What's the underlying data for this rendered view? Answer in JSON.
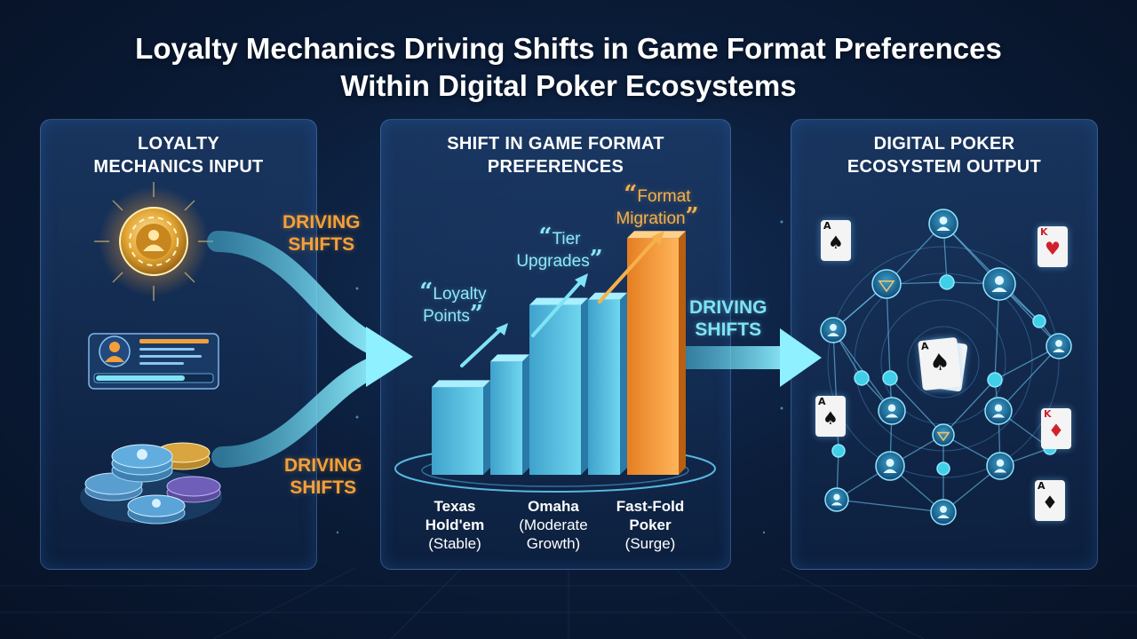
{
  "title": {
    "line1": "Loyalty Mechanics Driving Shifts in Game Format Preferences",
    "line2": "Within Digital Poker Ecosystems"
  },
  "panels": {
    "input": {
      "title_line1": "LOYALTY",
      "title_line2": "MECHANICS INPUT"
    },
    "shift": {
      "title_line1": "SHIFT IN GAME FORMAT",
      "title_line2": "PREFERENCES"
    },
    "output": {
      "title_line1": "DIGITAL POKER",
      "title_line2": "ECOSYSTEM OUTPUT"
    }
  },
  "flow_labels": {
    "upper_line1": "DRIVING",
    "upper_line2": "SHIFTS",
    "lower_line1": "DRIVING",
    "lower_line2": "SHIFTS",
    "middle_line1": "DRIVING",
    "middle_line2": "SHIFTS"
  },
  "callouts": {
    "loyalty_points_line1": "Loyalty",
    "loyalty_points_line2": "Points",
    "tier_upgrades_line1": "Tier",
    "tier_upgrades_line2": "Upgrades",
    "format_migration_line1": "Format",
    "format_migration_line2": "Migration",
    "open_quote": "“",
    "close_quote": "”"
  },
  "categories": [
    {
      "name_line1": "Texas",
      "name_line2": "Hold'em",
      "note": "(Stable)"
    },
    {
      "name_line1": "Omaha",
      "name_line2": "(Moderate",
      "note": "Growth)"
    },
    {
      "name_line1": "Fast-Fold",
      "name_line2": "Poker",
      "note": "(Surge)"
    }
  ],
  "bars": [
    {
      "level": 0.34,
      "color": "cyan"
    },
    {
      "level": 0.44,
      "color": "cyan"
    },
    {
      "level": 0.66,
      "color": "cyan"
    },
    {
      "level": 0.68,
      "color": "cyan"
    },
    {
      "level": 0.92,
      "color": "orange"
    }
  ],
  "colors": {
    "accent_orange": "#f3a03a",
    "accent_cyan": "#7fe3f5",
    "panel_border": "#4f7fbf",
    "background": "#0b1d3a"
  },
  "cards": [
    {
      "rank": "A",
      "suit": "♠",
      "red": false
    },
    {
      "rank": "K",
      "suit": "♥",
      "red": true
    },
    {
      "rank": "A",
      "suit": "♠",
      "red": false
    },
    {
      "rank": "K",
      "suit": "♦",
      "red": true
    },
    {
      "rank": "A",
      "suit": "♦",
      "red": false
    },
    {
      "rank": "A",
      "suit": "♠",
      "red": false
    }
  ],
  "icons": [
    "gold-chip-icon",
    "player-profile-card-icon",
    "chip-stack-icon",
    "network-node-icon",
    "user-node-icon",
    "playing-card-icon",
    "arrow-icon"
  ]
}
